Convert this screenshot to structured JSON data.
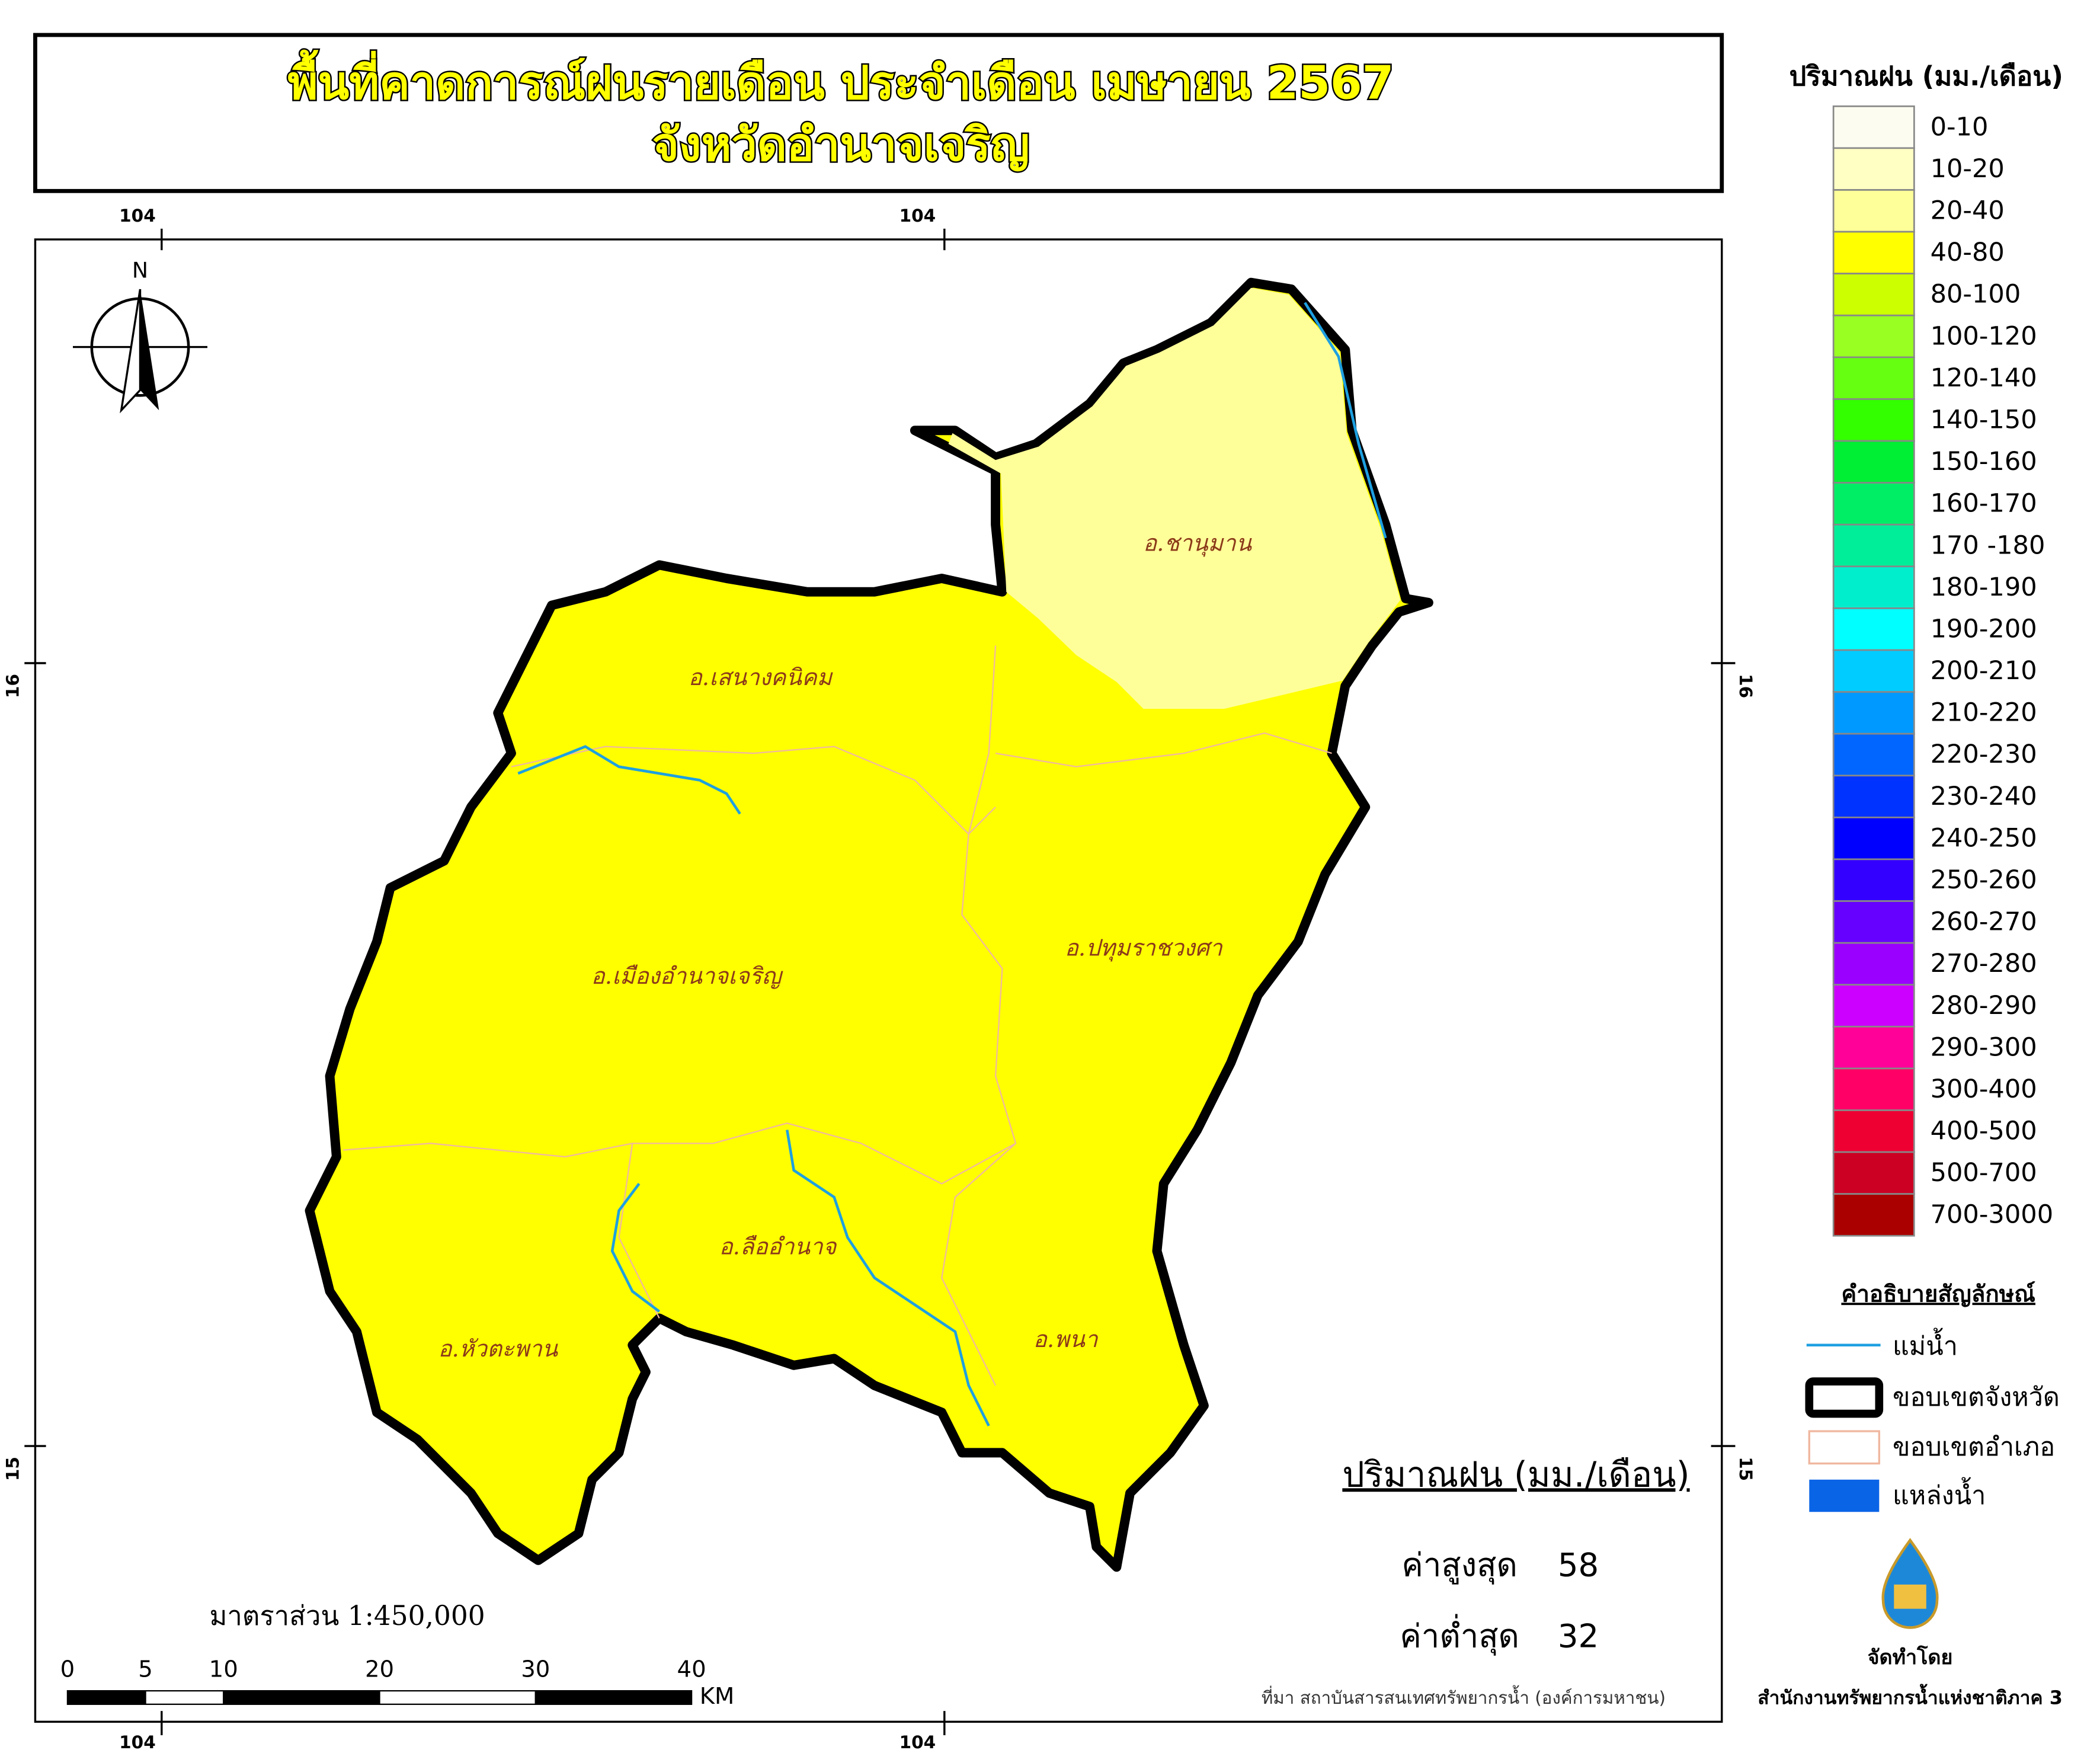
{
  "title": {
    "line1": "พื้นที่คาดการณ์ฝนรายเดือน ประจำเดือน เมษายน 2567",
    "line2": "จังหวัดอำนาจเจริญ"
  },
  "graticule": {
    "top": [
      104,
      104
    ],
    "bottom": [
      104,
      104
    ],
    "left": [
      16,
      15
    ],
    "right": [
      16,
      15
    ]
  },
  "north": "N",
  "districts": [
    "อ.ชานุมาน",
    "อ.เสนางคนิคม",
    "อ.เมืองอำนาจเจริญ",
    "อ.ปทุมราชวงศา",
    "อ.ลืออำนาจ",
    "อ.หัวตะพาน",
    "อ.พนา"
  ],
  "legend": {
    "title": "ปริมาณฝน (มม./เดือน)",
    "classes": [
      {
        "label": "0-10",
        "color": "#fcfcf0"
      },
      {
        "label": "10-20",
        "color": "#ffffc4"
      },
      {
        "label": "20-40",
        "color": "#ffff99"
      },
      {
        "label": "40-80",
        "color": "#ffff00"
      },
      {
        "label": "80-100",
        "color": "#ccff00"
      },
      {
        "label": "100-120",
        "color": "#99ff22"
      },
      {
        "label": "120-140",
        "color": "#66ff11"
      },
      {
        "label": "140-150",
        "color": "#33ff00"
      },
      {
        "label": "150-160",
        "color": "#00ee33"
      },
      {
        "label": "160-170",
        "color": "#00ee66"
      },
      {
        "label": "170 -180",
        "color": "#00ee99"
      },
      {
        "label": "180-190",
        "color": "#00eecc"
      },
      {
        "label": "190-200",
        "color": "#00ffff"
      },
      {
        "label": "200-210",
        "color": "#00ccff"
      },
      {
        "label": "210-220",
        "color": "#0099ff"
      },
      {
        "label": "220-230",
        "color": "#0066ff"
      },
      {
        "label": "230-240",
        "color": "#0033ff"
      },
      {
        "label": "240-250",
        "color": "#0000ff"
      },
      {
        "label": "250-260",
        "color": "#3300ff"
      },
      {
        "label": "260-270",
        "color": "#6600ff"
      },
      {
        "label": "270-280",
        "color": "#9900ff"
      },
      {
        "label": "280-290",
        "color": "#cc00ff"
      },
      {
        "label": "290-300",
        "color": "#ff0099"
      },
      {
        "label": "300-400",
        "color": "#ff0066"
      },
      {
        "label": "400-500",
        "color": "#ee0033"
      },
      {
        "label": "500-700",
        "color": "#cc0022"
      },
      {
        "label": "700-3000",
        "color": "#aa0000"
      }
    ]
  },
  "symbols": {
    "title": "คำอธิบายสัญลักษณ์",
    "items": [
      "แม่น้ำ",
      "ขอบเขตจังหวัด",
      "ขอบเขตอำเภอ",
      "แหล่งน้ำ"
    ]
  },
  "stats": {
    "title": "ปริมาณฝน (มม./เดือน)",
    "max_label": "ค่าสูงสุด",
    "max": 58,
    "min_label": "ค่าต่ำสุด",
    "min": 32
  },
  "scale": {
    "text": "มาตราส่วน  1:450,000",
    "ticks": [
      0,
      5,
      10,
      20,
      30,
      40
    ],
    "unit": "KM"
  },
  "source": "ที่มา  สถาบันสารสนเทศทรัพยากรน้ำ (องค์การมหาชน)",
  "credit": {
    "label": "จัดทำโดย",
    "org": "สำนักงานทรัพยากรน้ำแห่งชาติภาค 3"
  }
}
